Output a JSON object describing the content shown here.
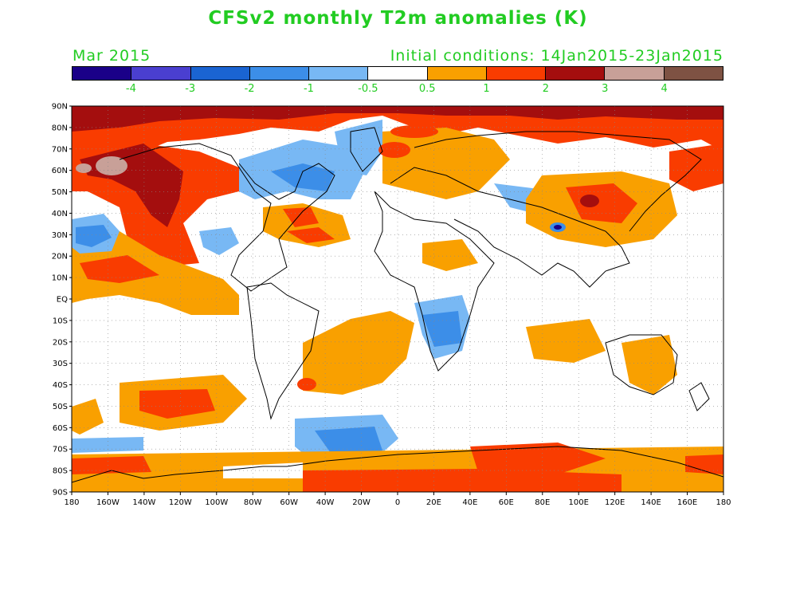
{
  "title": "CFSv2 monthly T2m anomalies (K)",
  "valid_month": "Mar 2015",
  "initial_conditions": "Initial conditions: 14Jan2015-23Jan2015",
  "colorbar": {
    "colors": [
      "#1a0088",
      "#4a3fd0",
      "#1a64d2",
      "#3c8ee8",
      "#78b8f4",
      "#ffffff",
      "#f9a000",
      "#f93c00",
      "#a40e0e",
      "#c8a098",
      "#7e5243"
    ],
    "labels": [
      "-4",
      "-3",
      "-2",
      "-1",
      "-0.5",
      "0.5",
      "1",
      "2",
      "3",
      "4"
    ]
  },
  "text_color": "#22cc22",
  "lat_labels": [
    "90N",
    "80N",
    "70N",
    "60N",
    "50N",
    "40N",
    "30N",
    "20N",
    "10N",
    "EQ",
    "10S",
    "20S",
    "30S",
    "40S",
    "50S",
    "60S",
    "70S",
    "80S",
    "90S"
  ],
  "lon_labels": [
    "180",
    "160W",
    "140W",
    "120W",
    "100W",
    "80W",
    "60W",
    "40W",
    "20W",
    "0",
    "20E",
    "40E",
    "60E",
    "80E",
    "100E",
    "120E",
    "140E",
    "160E",
    "180"
  ]
}
